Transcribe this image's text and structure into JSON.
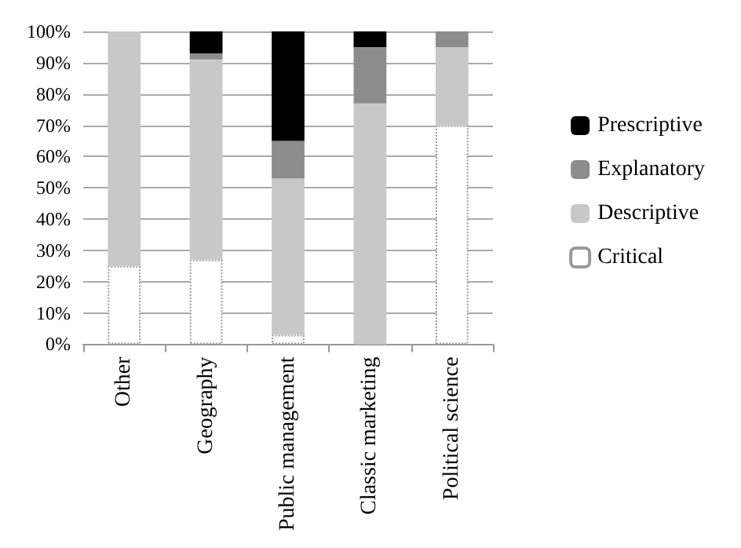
{
  "chart_data": {
    "type": "bar",
    "stacked": true,
    "categories": [
      "Other",
      "Geography",
      "Public management",
      "Classic marketing",
      "Political science"
    ],
    "series": [
      {
        "name": "Critical",
        "color": "#ffffff",
        "line_style": "dotted",
        "values": [
          25,
          27,
          3,
          0,
          70
        ]
      },
      {
        "name": "Descriptive",
        "color": "#c8c8c8",
        "values": [
          75,
          64,
          50,
          77,
          25
        ]
      },
      {
        "name": "Explanatory",
        "color": "#8c8c8c",
        "values": [
          0,
          2,
          12,
          18,
          5
        ]
      },
      {
        "name": "Prescriptive",
        "color": "#000000",
        "values": [
          0,
          7,
          35,
          5,
          0
        ]
      }
    ],
    "ylim": [
      0,
      100
    ],
    "yticks": [
      {
        "value": 0,
        "label": "0%"
      },
      {
        "value": 10,
        "label": "10%"
      },
      {
        "value": 20,
        "label": "20%"
      },
      {
        "value": 30,
        "label": "30%"
      },
      {
        "value": 40,
        "label": "40%"
      },
      {
        "value": 50,
        "label": "50%"
      },
      {
        "value": 60,
        "label": "60%"
      },
      {
        "value": 70,
        "label": "70%"
      },
      {
        "value": 80,
        "label": "80%"
      },
      {
        "value": 90,
        "label": "90%"
      },
      {
        "value": 100,
        "label": "100%"
      }
    ],
    "grid": "y",
    "legend": "right"
  }
}
